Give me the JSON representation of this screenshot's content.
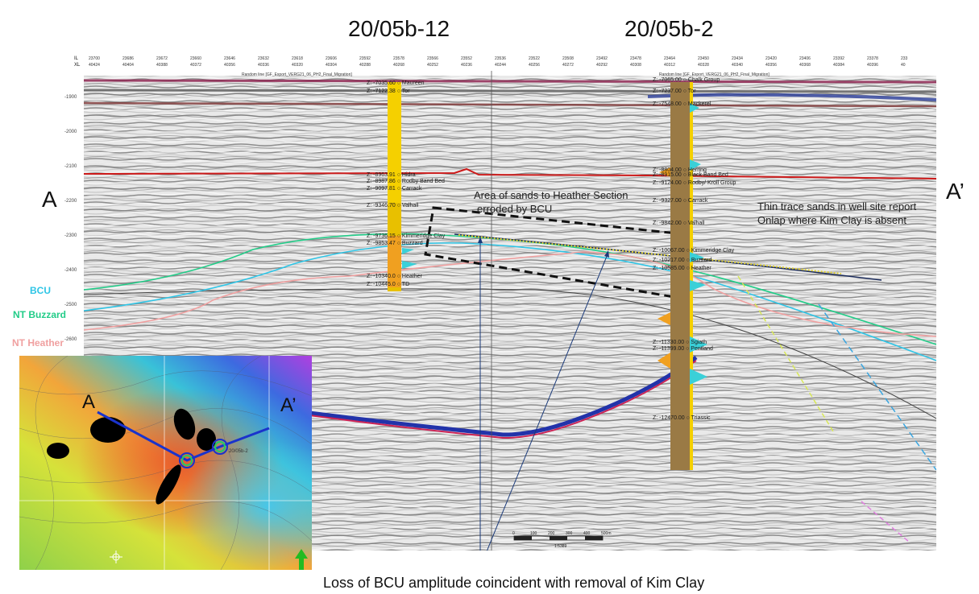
{
  "titles": {
    "well_left": "20/05b-12",
    "well_right": "20/05b-2"
  },
  "section_ends": {
    "left": "A",
    "right": "A’"
  },
  "legend": [
    {
      "label": "BCU",
      "color": "#2ec5e6"
    },
    {
      "label": "NT Buzzard",
      "color": "#22cc88"
    },
    {
      "label": "NT Heather",
      "color": "#f0a0a0"
    }
  ],
  "annotations": {
    "sand_area_line1": "Area of sands to Heather Section",
    "sand_area_line2": "erroded by BCU",
    "thin_trace_line1": "Thin trace sands in well site report",
    "thin_trace_line2": "Onlap where Kim Clay is absent",
    "caption": "Loss of BCU amplitude coincident with removal of Kim Clay"
  },
  "header": {
    "il_label": "IL",
    "xl_label": "XL",
    "il_values": [
      "23700",
      "23686",
      "23672",
      "23660",
      "23646",
      "23632",
      "23618",
      "23606",
      "23592",
      "23578",
      "23566",
      "23552",
      "23536",
      "23522",
      "23508",
      "23492",
      "23478",
      "23464",
      "23450",
      "23434",
      "23420",
      "23406",
      "23392",
      "23378",
      "233"
    ],
    "xl_values": [
      "40424",
      "40404",
      "40388",
      "40372",
      "40356",
      "40336",
      "40320",
      "40304",
      "40288",
      "40268",
      "40252",
      "40236",
      "40244",
      "40256",
      "40272",
      "40292",
      "40308",
      "40312",
      "40328",
      "40340",
      "40356",
      "40368",
      "40384",
      "40396",
      "40"
    ],
    "left_line_label": "Random line [GF_Export_VERG21_06_PH2_Final_Migration]",
    "right_line_label": "Random line [GF_Export_VERG21_06_PH2_Final_Migration]"
  },
  "depth_axis": [
    "-1900",
    "-2000",
    "-2100",
    "-2200",
    "-2300",
    "-2400",
    "-2500",
    "-2600",
    "-2700"
  ],
  "well_left_tops": [
    {
      "depth": "Z: -7035.60",
      "name": "Maureen"
    },
    {
      "depth": "Z: -7122.38",
      "name": "Tor"
    },
    {
      "depth": "Z: -8963.91",
      "name": "Hidra"
    },
    {
      "depth": "Z: -8987.86",
      "name": "Rodby Band Bed"
    },
    {
      "depth": "Z: -9097.81",
      "name": "Carrack"
    },
    {
      "depth": "Z: -9346.70",
      "name": "Valhall"
    },
    {
      "depth": "Z: -9736.15",
      "name": "Kimmeridge Clay"
    },
    {
      "depth": "Z: -9853.47",
      "name": "Buzzard"
    },
    {
      "depth": "Z: -10340.0",
      "name": "Heather"
    },
    {
      "depth": "Z: -10445.0",
      "name": "TD"
    }
  ],
  "well_right_tops": [
    {
      "depth": "Z: -7065.00",
      "name": "Chalk Group"
    },
    {
      "depth": "Z: -7237.00",
      "name": "Tor"
    },
    {
      "depth": "Z: -7548.00",
      "name": "Mackerel"
    },
    {
      "depth": "Z: -8804.00",
      "name": "Herring"
    },
    {
      "depth": "Z: -8915.00",
      "name": "Black Band Bed"
    },
    {
      "depth": "Z: -9124.00",
      "name": "Rodby/ Kroll Group"
    },
    {
      "depth": "Z: -9327.00",
      "name": "Carrack"
    },
    {
      "depth": "Z: -9842.00",
      "name": "Valhall"
    },
    {
      "depth": "Z: -10067.00",
      "name": "Kimmeridge Clay"
    },
    {
      "depth": "Z: -10217.00",
      "name": "Buzzard"
    },
    {
      "depth": "Z: -10585.00",
      "name": "Heather"
    },
    {
      "depth": "Z: -11330.00",
      "name": "Sgiath"
    },
    {
      "depth": "Z: -11399.00",
      "name": "Pentland"
    },
    {
      "depth": "Z: -12470.00",
      "name": "Triassic"
    }
  ],
  "scale_bar": {
    "ticks": [
      "0",
      "100",
      "200",
      "300",
      "400",
      "500m"
    ],
    "ratio": "1:5389"
  },
  "map": {
    "label_a": "A",
    "label_a_prime": "A’",
    "well_label": "20/05b-2",
    "north_arrow": "north-arrow-icon"
  },
  "colors": {
    "bcu": "#2ec5e6",
    "buzzard": "#22cc88",
    "heather": "#f0a0a0",
    "well_bar": "#f5d000",
    "dashed_box": "#111111",
    "map_line": "#1a33cc"
  }
}
